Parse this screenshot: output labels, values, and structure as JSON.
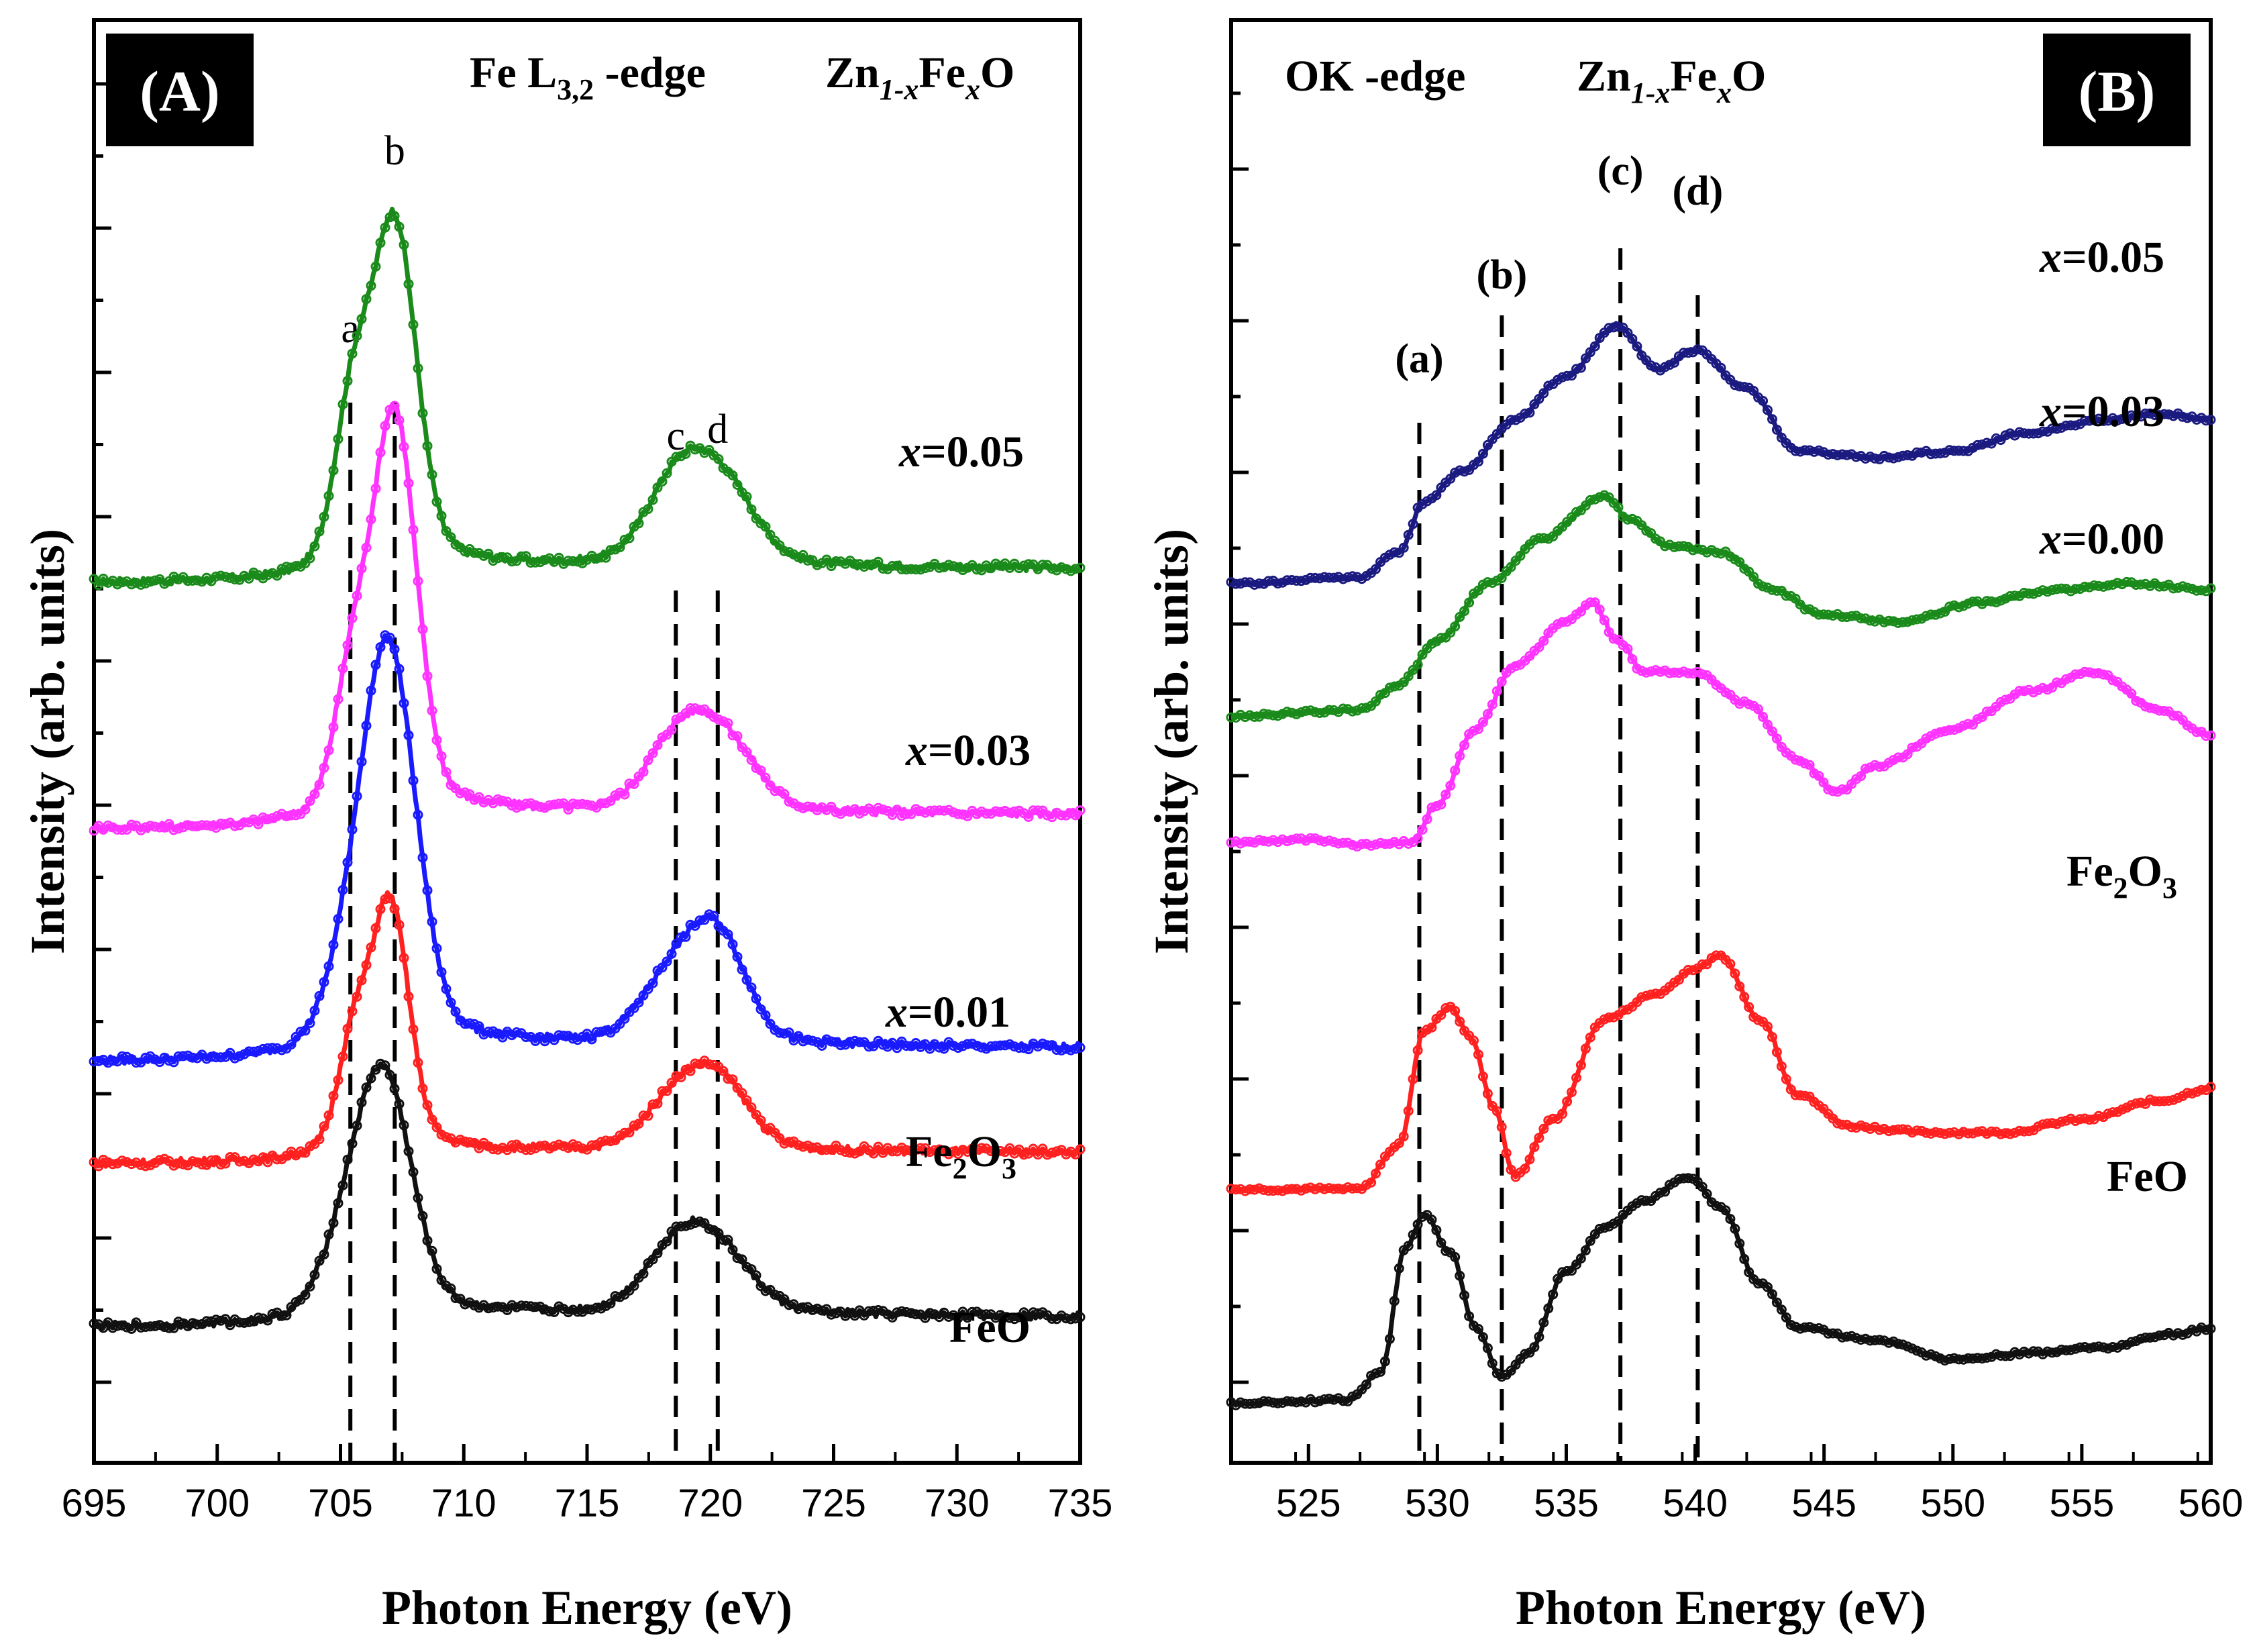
{
  "chart_data": [
    {
      "type": "line",
      "panel": "(A)",
      "title": "Fe L3,2 -edge",
      "xlabel": "Photon Energy (eV)",
      "ylabel": "Intensity (arb. units)",
      "xlim": [
        695,
        735
      ],
      "ylim": [
        0,
        10
      ],
      "xticks": [
        695,
        700,
        705,
        710,
        715,
        720,
        725,
        730,
        735
      ],
      "annotations": {
        "edge_label": "Fe L",
        "edge_sub": "3,2",
        "edge_suffix": " -edge",
        "formula_a": "Zn",
        "formula_sub1": "1-x",
        "formula_b": "Fe",
        "formula_sub2": "x",
        "formula_c": "O"
      },
      "peak_markers": [
        {
          "label": "a",
          "x": 705.4
        },
        {
          "label": "b",
          "x": 707.2
        },
        {
          "label": "c",
          "x": 718.6
        },
        {
          "label": "d",
          "x": 720.3
        }
      ],
      "series": [
        {
          "name": "x=0.05",
          "label_var": "x",
          "label_val": "=0.05",
          "color": "#1a8a1a",
          "peaks": [
            [
              705.5,
              1.1,
              0.7
            ],
            [
              707.2,
              2.4,
              0.85
            ],
            [
              718.6,
              0.55,
              1.2
            ],
            [
              720.5,
              0.55,
              1.3
            ]
          ],
          "edge": [
            704.5,
            0.2
          ],
          "baseline": 5.9
        },
        {
          "name": "x=0.03",
          "label_var": "x",
          "label_val": "=0.03",
          "color": "#ff33ff",
          "peaks": [
            [
              705.5,
              0.9,
              0.7
            ],
            [
              707.2,
              2.8,
              0.85
            ],
            [
              718.6,
              0.45,
              1.2
            ],
            [
              720.5,
              0.5,
              1.3
            ]
          ],
          "edge": [
            704.5,
            0.2
          ],
          "baseline": 3.95
        },
        {
          "name": "x=0.01",
          "label_var": "x",
          "label_val": "=0.01",
          "color": "#1a1aff",
          "peaks": [
            [
              705.5,
              0.5,
              1.0
            ],
            [
              707.0,
              2.7,
              1.05
            ],
            [
              718.6,
              0.5,
              1.3
            ],
            [
              720.4,
              0.65,
              1.1
            ]
          ],
          "edge": [
            704.5,
            0.2
          ],
          "baseline": 2.1
        },
        {
          "name": "Fe2O3",
          "label_main": "Fe",
          "label_sub1": "2",
          "label_mid": "O",
          "label_sub2": "3",
          "color": "#ff2020",
          "peaks": [
            [
              705.5,
              0.7,
              0.6
            ],
            [
              707.0,
              1.75,
              0.75
            ],
            [
              718.6,
              0.35,
              1.2
            ],
            [
              720.4,
              0.45,
              1.2
            ]
          ],
          "edge": [
            704.5,
            0.15
          ],
          "baseline": 1.3
        },
        {
          "name": "FeO",
          "label_text": "FeO",
          "color": "#111111",
          "peaks": [
            [
              705.5,
              0.6,
              1.1
            ],
            [
              706.9,
              1.45,
              1.05
            ],
            [
              718.6,
              0.4,
              1.3
            ],
            [
              720.3,
              0.4,
              1.4
            ]
          ],
          "edge": [
            704.5,
            0.15
          ],
          "baseline": 0.0
        }
      ]
    },
    {
      "type": "line",
      "panel": "(B)",
      "title": "OK -edge",
      "xlabel": "Photon Energy (eV)",
      "ylabel": "Intensity (arb. units)",
      "xlim": [
        522,
        560
      ],
      "ylim": [
        0,
        10
      ],
      "xticks": [
        525,
        530,
        535,
        540,
        545,
        550,
        555,
        560
      ],
      "annotations": {
        "edge_label": "OK -edge",
        "formula_a": "Zn",
        "formula_sub1": "1-x",
        "formula_b": "Fe",
        "formula_sub2": "x",
        "formula_c": "O"
      },
      "peak_markers": [
        {
          "label": "(a)",
          "x": 529.3
        },
        {
          "label": "(b)",
          "x": 532.5
        },
        {
          "label": "(c)",
          "x": 537.1
        },
        {
          "label": "(d)",
          "x": 540.1
        }
      ],
      "series": [
        {
          "name": "x=0.05",
          "label_var": "x",
          "label_val": "=0.05",
          "color": "#1a1a80",
          "points": [
            [
              522,
              6.65
            ],
            [
              527,
              6.7
            ],
            [
              528.5,
              6.9
            ],
            [
              529.5,
              7.3
            ],
            [
              531,
              7.55
            ],
            [
              533,
              7.95
            ],
            [
              535,
              8.3
            ],
            [
              537,
              8.7
            ],
            [
              538.5,
              8.35
            ],
            [
              540,
              8.5
            ],
            [
              542,
              8.2
            ],
            [
              544,
              7.7
            ],
            [
              547,
              7.65
            ],
            [
              550,
              7.7
            ],
            [
              553,
              7.85
            ],
            [
              556,
              7.95
            ],
            [
              558,
              8.0
            ],
            [
              560,
              7.95
            ]
          ]
        },
        {
          "name": "x=0.03",
          "label_var": "x",
          "label_val": "=0.03",
          "color": "#1a8a1a",
          "points": [
            [
              522,
              5.6
            ],
            [
              527,
              5.65
            ],
            [
              528.5,
              5.85
            ],
            [
              530,
              6.2
            ],
            [
              532,
              6.65
            ],
            [
              534,
              7.0
            ],
            [
              536.5,
              7.35
            ],
            [
              537.5,
              7.15
            ],
            [
              539,
              6.95
            ],
            [
              541,
              6.9
            ],
            [
              543,
              6.6
            ],
            [
              545,
              6.4
            ],
            [
              548,
              6.35
            ],
            [
              551,
              6.5
            ],
            [
              554,
              6.6
            ],
            [
              557,
              6.65
            ],
            [
              560,
              6.6
            ]
          ]
        },
        {
          "name": "x=0.00",
          "label_var": "x",
          "label_val": "=0.00",
          "color": "#ff33ff",
          "points": [
            [
              522,
              4.6
            ],
            [
              525,
              4.62
            ],
            [
              527,
              4.58
            ],
            [
              529,
              4.6
            ],
            [
              530,
              4.9
            ],
            [
              531.5,
              5.5
            ],
            [
              533,
              6.0
            ],
            [
              535,
              6.35
            ],
            [
              536,
              6.5
            ],
            [
              537,
              6.2
            ],
            [
              538,
              5.95
            ],
            [
              540,
              5.95
            ],
            [
              542,
              5.7
            ],
            [
              544,
              5.25
            ],
            [
              545.5,
              5.0
            ],
            [
              547,
              5.2
            ],
            [
              550,
              5.5
            ],
            [
              553,
              5.8
            ],
            [
              555.5,
              5.95
            ],
            [
              558,
              5.65
            ],
            [
              560,
              5.45
            ]
          ]
        },
        {
          "name": "Fe2O3",
          "label_main": "Fe",
          "label_sub1": "2",
          "label_mid": "O",
          "label_sub2": "3",
          "color": "#ff2020",
          "points": [
            [
              522,
              1.85
            ],
            [
              527,
              1.85
            ],
            [
              528.5,
              2.2
            ],
            [
              529.5,
              3.1
            ],
            [
              530.5,
              3.3
            ],
            [
              531.3,
              3.05
            ],
            [
              532.2,
              2.5
            ],
            [
              533,
              1.95
            ],
            [
              534.5,
              2.4
            ],
            [
              536.5,
              3.2
            ],
            [
              538.5,
              3.4
            ],
            [
              540,
              3.6
            ],
            [
              541,
              3.7
            ],
            [
              542.5,
              3.2
            ],
            [
              544,
              2.6
            ],
            [
              546,
              2.35
            ],
            [
              549,
              2.3
            ],
            [
              552,
              2.3
            ],
            [
              555,
              2.4
            ],
            [
              558,
              2.55
            ],
            [
              560,
              2.65
            ]
          ]
        },
        {
          "name": "FeO",
          "label_text": "FeO",
          "color": "#111111",
          "points": [
            [
              522,
              0.15
            ],
            [
              526.5,
              0.18
            ],
            [
              527.8,
              0.4
            ],
            [
              528.8,
              1.4
            ],
            [
              529.5,
              1.65
            ],
            [
              530.5,
              1.35
            ],
            [
              531.5,
              0.75
            ],
            [
              532.5,
              0.35
            ],
            [
              533.5,
              0.55
            ],
            [
              535,
              1.2
            ],
            [
              536.5,
              1.55
            ],
            [
              538,
              1.75
            ],
            [
              539.8,
              1.95
            ],
            [
              541,
              1.7
            ],
            [
              542.5,
              1.1
            ],
            [
              544,
              0.75
            ],
            [
              547,
              0.65
            ],
            [
              550,
              0.5
            ],
            [
              553,
              0.55
            ],
            [
              556,
              0.6
            ],
            [
              558.5,
              0.7
            ],
            [
              560,
              0.75
            ]
          ]
        }
      ]
    }
  ]
}
